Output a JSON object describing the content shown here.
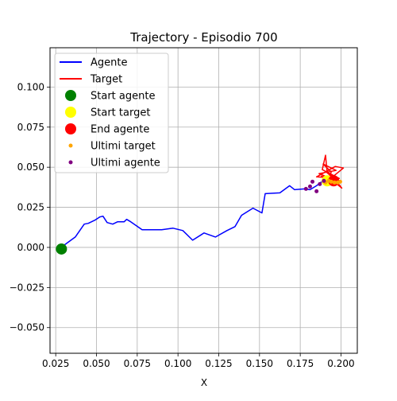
{
  "chart_data": {
    "type": "line",
    "title": "Trajectory - Episodio 700",
    "xlabel": "X",
    "ylabel": "",
    "xlim": [
      0.0215,
      0.21
    ],
    "ylim": [
      -0.066,
      0.1245
    ],
    "grid": true,
    "legend_position": "upper-left",
    "x_ticks": [
      {
        "value": 0.025,
        "label": "0.025"
      },
      {
        "value": 0.05,
        "label": "0.050"
      },
      {
        "value": 0.075,
        "label": "0.075"
      },
      {
        "value": 0.1,
        "label": "0.100"
      },
      {
        "value": 0.125,
        "label": "0.125"
      },
      {
        "value": 0.15,
        "label": "0.150"
      },
      {
        "value": 0.175,
        "label": "0.175"
      },
      {
        "value": 0.2,
        "label": "0.200"
      }
    ],
    "y_ticks": [
      {
        "value": -0.05,
        "label": "−0.050"
      },
      {
        "value": -0.025,
        "label": "−0.025"
      },
      {
        "value": 0.0,
        "label": "0.000"
      },
      {
        "value": 0.025,
        "label": "0.025"
      },
      {
        "value": 0.05,
        "label": "0.050"
      },
      {
        "value": 0.075,
        "label": "0.075"
      },
      {
        "value": 0.1,
        "label": "0.100"
      }
    ],
    "series": [
      {
        "name": "Agente",
        "kind": "line",
        "color": "#0000ff",
        "points": [
          [
            0.028,
            0.0
          ],
          [
            0.031,
            0.002
          ],
          [
            0.037,
            0.0065
          ],
          [
            0.0425,
            0.0145
          ],
          [
            0.045,
            0.015
          ],
          [
            0.049,
            0.017
          ],
          [
            0.052,
            0.019
          ],
          [
            0.054,
            0.0195
          ],
          [
            0.0565,
            0.0155
          ],
          [
            0.06,
            0.0145
          ],
          [
            0.063,
            0.016
          ],
          [
            0.067,
            0.016
          ],
          [
            0.0685,
            0.0175
          ],
          [
            0.071,
            0.016
          ],
          [
            0.078,
            0.011
          ],
          [
            0.09,
            0.011
          ],
          [
            0.097,
            0.012
          ],
          [
            0.103,
            0.0105
          ],
          [
            0.109,
            0.0045
          ],
          [
            0.116,
            0.009
          ],
          [
            0.123,
            0.0065
          ],
          [
            0.13,
            0.0105
          ],
          [
            0.135,
            0.013
          ],
          [
            0.139,
            0.02
          ],
          [
            0.146,
            0.0245
          ],
          [
            0.1515,
            0.0215
          ],
          [
            0.1535,
            0.0335
          ],
          [
            0.1625,
            0.034
          ],
          [
            0.1685,
            0.0385
          ],
          [
            0.1715,
            0.036
          ],
          [
            0.1775,
            0.0365
          ],
          [
            0.181,
            0.036
          ],
          [
            0.185,
            0.0385
          ],
          [
            0.1875,
            0.0405
          ],
          [
            0.19,
            0.0415
          ],
          [
            0.1925,
            0.043
          ],
          [
            0.1955,
            0.0415
          ],
          [
            0.1975,
            0.0425
          ]
        ]
      },
      {
        "name": "Target",
        "kind": "line",
        "color": "#ff0000",
        "points": [
          [
            0.191,
            0.04
          ],
          [
            0.194,
            0.047
          ],
          [
            0.189,
            0.052
          ],
          [
            0.197,
            0.048
          ],
          [
            0.1865,
            0.046
          ],
          [
            0.196,
            0.042
          ],
          [
            0.1895,
            0.0445
          ],
          [
            0.1985,
            0.0405
          ],
          [
            0.1915,
            0.0465
          ],
          [
            0.1905,
            0.0575
          ],
          [
            0.1885,
            0.0485
          ],
          [
            0.199,
            0.043
          ],
          [
            0.185,
            0.044
          ],
          [
            0.1965,
            0.0505
          ],
          [
            0.2015,
            0.0495
          ],
          [
            0.1895,
            0.0395
          ],
          [
            0.194,
            0.0455
          ],
          [
            0.2005,
            0.037
          ],
          [
            0.1945,
            0.042
          ],
          [
            0.188,
            0.0445
          ],
          [
            0.195,
            0.0395
          ],
          [
            0.197,
            0.042
          ]
        ]
      },
      {
        "name": "Start agente",
        "kind": "marker",
        "color": "#008000",
        "size": 7,
        "points": [
          [
            0.0285,
            -0.001
          ]
        ]
      },
      {
        "name": "Start target",
        "kind": "marker",
        "color": "#ffff00",
        "size": 7,
        "points": [
          [
            0.1915,
            0.0415
          ]
        ]
      },
      {
        "name": "End agente",
        "kind": "marker",
        "color": "#ff0000",
        "size": 7,
        "points": [
          [
            0.1955,
            0.0415
          ]
        ]
      },
      {
        "name": "Ultimi target",
        "kind": "marker",
        "color": "#ffa500",
        "size": 2.5,
        "points": [
          [
            0.1905,
            0.0405
          ],
          [
            0.1925,
            0.0415
          ],
          [
            0.194,
            0.041
          ],
          [
            0.196,
            0.0405
          ],
          [
            0.198,
            0.0405
          ],
          [
            0.1995,
            0.041
          ]
        ]
      },
      {
        "name": "Ultimi agente",
        "kind": "marker",
        "color": "#800080",
        "size": 2.5,
        "points": [
          [
            0.1785,
            0.0365
          ],
          [
            0.181,
            0.038
          ],
          [
            0.1825,
            0.041
          ],
          [
            0.185,
            0.035
          ],
          [
            0.187,
            0.0395
          ],
          [
            0.1895,
            0.0415
          ]
        ]
      }
    ]
  }
}
